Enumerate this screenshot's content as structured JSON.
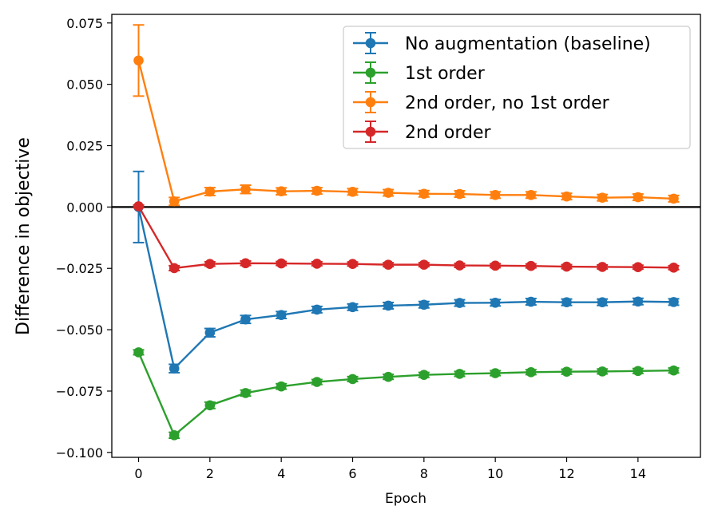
{
  "chart_data": {
    "type": "line",
    "title": "",
    "xlabel": "Epoch",
    "ylabel": "Difference in objective",
    "xlim": [
      -0.75,
      15.75
    ],
    "ylim": [
      -0.102,
      0.0785
    ],
    "x_ticks": [
      0,
      2,
      4,
      6,
      8,
      10,
      12,
      14
    ],
    "x_tick_labels": [
      "0",
      "2",
      "4",
      "6",
      "8",
      "10",
      "12",
      "14"
    ],
    "y_ticks": [
      0.075,
      0.05,
      0.025,
      0.0,
      -0.025,
      -0.05,
      -0.075,
      -0.1
    ],
    "y_tick_labels": [
      "0.075",
      "0.050",
      "0.025",
      "0.000",
      "−0.025",
      "−0.050",
      "−0.075",
      "−0.100"
    ],
    "grid": false,
    "legend_position": "top-right",
    "reference_line": {
      "y": 0,
      "color": "#000000"
    },
    "x": [
      0,
      1,
      2,
      3,
      4,
      5,
      6,
      7,
      8,
      9,
      10,
      11,
      12,
      13,
      14,
      15
    ],
    "series": [
      {
        "name": "No augmentation (baseline)",
        "color": "#1f77b4",
        "values": [
          0.0,
          -0.0658,
          -0.0512,
          -0.0458,
          -0.044,
          -0.0418,
          -0.0408,
          -0.0402,
          -0.0398,
          -0.0391,
          -0.039,
          -0.0386,
          -0.0388,
          -0.0388,
          -0.0385,
          -0.0387
        ],
        "errors": [
          0.0145,
          0.0017,
          0.0017,
          0.0016,
          0.0014,
          0.0013,
          0.0013,
          0.0013,
          0.0013,
          0.0013,
          0.0013,
          0.0013,
          0.0013,
          0.0013,
          0.0013,
          0.0013
        ]
      },
      {
        "name": "1st order",
        "color": "#2ca02c",
        "values": [
          -0.0592,
          -0.093,
          -0.0808,
          -0.0758,
          -0.0731,
          -0.0713,
          -0.0701,
          -0.0692,
          -0.0684,
          -0.068,
          -0.0677,
          -0.0673,
          -0.0671,
          -0.067,
          -0.0668,
          -0.0666
        ],
        "errors": [
          0.001,
          0.0012,
          0.0013,
          0.0012,
          0.0011,
          0.001,
          0.001,
          0.001,
          0.001,
          0.001,
          0.001,
          0.001,
          0.001,
          0.001,
          0.001,
          0.001
        ]
      },
      {
        "name": "2nd order, no 1st order",
        "color": "#ff7f0e",
        "values": [
          0.0597,
          0.0023,
          0.0063,
          0.0072,
          0.0064,
          0.0066,
          0.0062,
          0.0058,
          0.0054,
          0.0053,
          0.0049,
          0.0049,
          0.0043,
          0.0038,
          0.004,
          0.0034
        ],
        "errors": [
          0.0145,
          0.0016,
          0.0016,
          0.0017,
          0.0014,
          0.0013,
          0.0013,
          0.0013,
          0.0013,
          0.0013,
          0.0013,
          0.0013,
          0.0013,
          0.0013,
          0.0013,
          0.0013
        ]
      },
      {
        "name": "2nd order",
        "color": "#d62728",
        "values": [
          0.0003,
          -0.0249,
          -0.0232,
          -0.0229,
          -0.023,
          -0.0231,
          -0.0232,
          -0.0235,
          -0.0235,
          -0.0238,
          -0.0239,
          -0.024,
          -0.0243,
          -0.0244,
          -0.0245,
          -0.0247
        ],
        "errors": [
          0.0005,
          0.001,
          0.0009,
          0.0009,
          0.0008,
          0.0008,
          0.0008,
          0.0008,
          0.0008,
          0.0008,
          0.0008,
          0.0008,
          0.0008,
          0.0008,
          0.0008,
          0.0008
        ]
      }
    ]
  }
}
